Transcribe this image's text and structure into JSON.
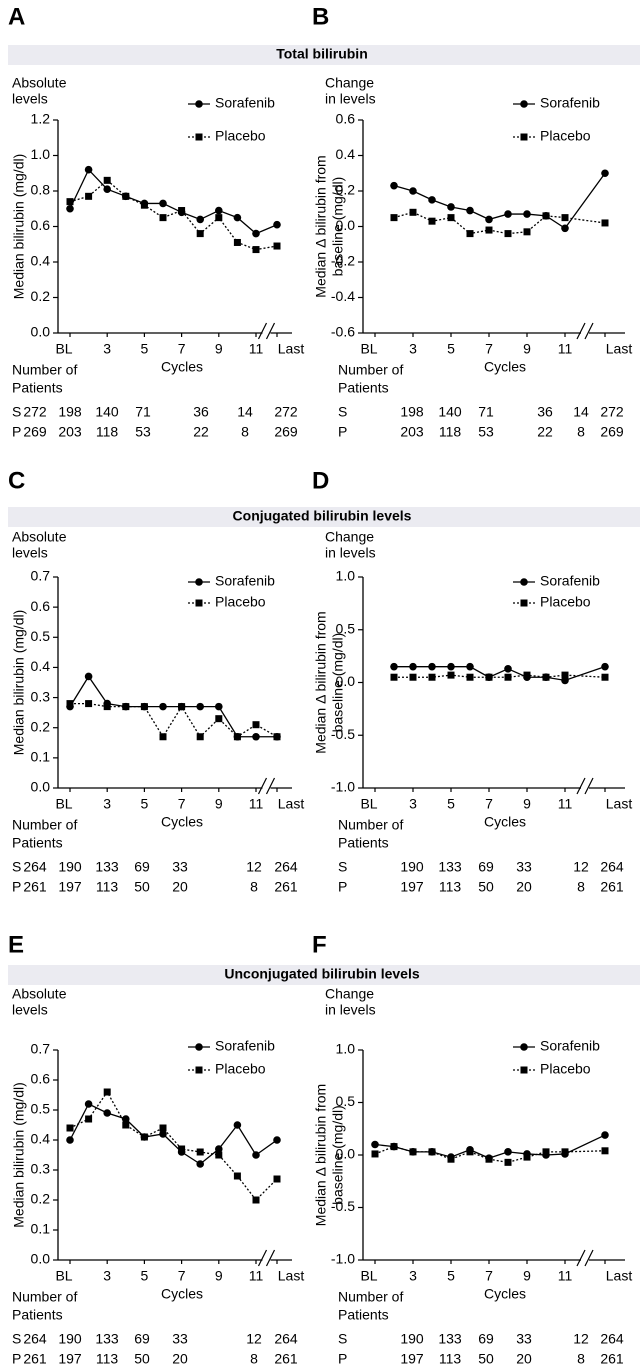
{
  "section_titles": [
    "Total bilirubin",
    "Conjugated bilirubin levels",
    "Unconjugated bilirubin levels"
  ],
  "chart_data": [
    {
      "type": "line",
      "panel": "A",
      "corner_label": [
        "Absolute",
        "levels"
      ],
      "y_label": [
        "Median bilirubin (mg/dl)"
      ],
      "x_label": "Cycles",
      "categories": [
        "BL",
        null,
        "3",
        null,
        "5",
        null,
        "7",
        null,
        "9",
        null,
        "11",
        "Last"
      ],
      "series": [
        {
          "name": "Sorafenib",
          "color": "#000000",
          "marker": "circle",
          "line_style": "solid",
          "values": [
            0.7,
            0.92,
            0.81,
            0.77,
            0.73,
            0.73,
            0.68,
            0.64,
            0.69,
            0.65,
            0.56,
            0.61
          ]
        },
        {
          "name": "Placebo",
          "color": "#000000",
          "marker": "square",
          "line_style": "dotted",
          "values": [
            0.74,
            0.77,
            0.86,
            0.77,
            0.72,
            0.65,
            0.69,
            0.56,
            0.65,
            0.51,
            0.47,
            0.49
          ]
        }
      ],
      "ylim": [
        0,
        1.2
      ],
      "yticks": [
        {
          "value": 0,
          "label": "0.0"
        },
        0.2,
        0.4,
        0.6,
        0.8,
        {
          "value": 1,
          "label": "1.0"
        },
        1.2
      ],
      "legend": "upper right",
      "patients": {
        "title": [
          "Number of",
          "Patients"
        ],
        "rows": [
          {
            "label": "S",
            "values": [
              272,
              198,
              140,
              71,
              36,
              14,
              272
            ]
          },
          {
            "label": "P",
            "values": [
              269,
              203,
              118,
              53,
              22,
              8,
              269
            ]
          }
        ]
      }
    },
    {
      "type": "line",
      "panel": "B",
      "corner_label": [
        "Change",
        "in levels"
      ],
      "y_label": [
        "Median Δ bilirubin from",
        "baseline (mg/dl)"
      ],
      "x_label": "Cycles",
      "categories": [
        "BL",
        null,
        "3",
        null,
        "5",
        null,
        "7",
        null,
        "9",
        null,
        "11",
        "Last"
      ],
      "series": [
        {
          "name": "Sorafenib",
          "color": "#000000",
          "marker": "circle",
          "line_style": "solid",
          "values": [
            null,
            0.23,
            0.2,
            0.15,
            0.11,
            0.09,
            0.04,
            0.07,
            0.07,
            0.06,
            -0.01,
            0.3
          ]
        },
        {
          "name": "Placebo",
          "color": "#000000",
          "marker": "square",
          "line_style": "dotted",
          "values": [
            null,
            0.05,
            0.08,
            0.03,
            0.05,
            -0.04,
            -0.02,
            -0.04,
            -0.03,
            0.06,
            0.05,
            0.02
          ]
        }
      ],
      "ylim": [
        -0.6,
        0.6
      ],
      "yticks": [
        -0.6,
        -0.4,
        -0.2,
        {
          "value": 0,
          "label": "0.0"
        },
        0.2,
        0.4,
        0.6
      ],
      "legend": "upper right",
      "patients": {
        "title": [
          "Number of",
          "Patients"
        ],
        "rows": [
          {
            "label": "S",
            "values": [
              198,
              140,
              71,
              36,
              14,
              272
            ]
          },
          {
            "label": "P",
            "values": [
              203,
              118,
              53,
              22,
              8,
              269
            ]
          }
        ]
      }
    },
    {
      "type": "line",
      "panel": "C",
      "corner_label": [
        "Absolute",
        "levels"
      ],
      "y_label": [
        "Median bilirubin (mg/dl)"
      ],
      "x_label": "Cycles",
      "categories": [
        "BL",
        null,
        "3",
        null,
        "5",
        null,
        "7",
        null,
        "9",
        null,
        "11",
        "Last"
      ],
      "series": [
        {
          "name": "Sorafenib",
          "color": "#000000",
          "marker": "circle",
          "line_style": "solid",
          "values": [
            0.27,
            0.37,
            0.28,
            0.27,
            0.27,
            0.27,
            0.27,
            0.27,
            0.27,
            0.17,
            0.17,
            0.17
          ]
        },
        {
          "name": "Placebo",
          "color": "#000000",
          "marker": "square",
          "line_style": "dotted",
          "values": [
            0.28,
            0.28,
            0.27,
            0.27,
            0.27,
            0.17,
            0.27,
            0.17,
            0.23,
            0.17,
            0.21,
            0.17
          ]
        }
      ],
      "ylim": [
        0,
        0.7
      ],
      "yticks": [
        {
          "value": 0,
          "label": "0.0"
        },
        0.1,
        0.2,
        0.3,
        0.4,
        0.5,
        0.6,
        0.7
      ],
      "legend": "upper right",
      "patients": {
        "title": [
          "Number of",
          "Patients"
        ],
        "rows": [
          {
            "label": "S",
            "values": [
              264,
              190,
              133,
              69,
              33,
              12,
              264
            ]
          },
          {
            "label": "P",
            "values": [
              261,
              197,
              113,
              50,
              20,
              8,
              261
            ]
          }
        ]
      }
    },
    {
      "type": "line",
      "panel": "D",
      "corner_label": [
        "Change",
        "in levels"
      ],
      "y_label": [
        "Median Δ bilirubin from",
        "baseline (mg/dl)"
      ],
      "x_label": "Cycles",
      "categories": [
        "BL",
        null,
        "3",
        null,
        "5",
        null,
        "7",
        null,
        "9",
        null,
        "11",
        "Last"
      ],
      "series": [
        {
          "name": "Sorafenib",
          "color": "#000000",
          "marker": "circle",
          "line_style": "solid",
          "values": [
            null,
            0.15,
            0.15,
            0.15,
            0.15,
            0.15,
            0.05,
            0.13,
            0.05,
            0.05,
            0.02,
            0.15
          ]
        },
        {
          "name": "Placebo",
          "color": "#000000",
          "marker": "square",
          "line_style": "dotted",
          "values": [
            null,
            0.05,
            0.05,
            0.05,
            0.07,
            0.05,
            0.05,
            0.05,
            0.07,
            0.05,
            0.07,
            0.05
          ]
        }
      ],
      "ylim": [
        -1,
        1
      ],
      "yticks": [
        {
          "value": -1,
          "label": "-1.0"
        },
        -0.5,
        {
          "value": 0,
          "label": "0.0"
        },
        0.5,
        {
          "value": 1,
          "label": "1.0"
        }
      ],
      "legend": "upper right",
      "patients": {
        "title": [
          "Number of",
          "Patients"
        ],
        "rows": [
          {
            "label": "S",
            "values": [
              190,
              133,
              69,
              33,
              12,
              264
            ]
          },
          {
            "label": "P",
            "values": [
              197,
              113,
              50,
              20,
              8,
              261
            ]
          }
        ]
      }
    },
    {
      "type": "line",
      "panel": "E",
      "corner_label": [
        "Absolute",
        "levels"
      ],
      "y_label": [
        "Median bilirubin (mg/dl)"
      ],
      "x_label": "Cycles",
      "categories": [
        "BL",
        null,
        "3",
        null,
        "5",
        null,
        "7",
        null,
        "9",
        null,
        "11",
        "Last"
      ],
      "series": [
        {
          "name": "Sorafenib",
          "color": "#000000",
          "marker": "circle",
          "line_style": "solid",
          "values": [
            0.4,
            0.52,
            0.49,
            0.47,
            0.41,
            0.42,
            0.36,
            0.32,
            0.37,
            0.45,
            0.35,
            0.4
          ]
        },
        {
          "name": "Placebo",
          "color": "#000000",
          "marker": "square",
          "line_style": "dotted",
          "values": [
            0.44,
            0.47,
            0.56,
            0.45,
            0.41,
            0.44,
            0.37,
            0.36,
            0.35,
            0.28,
            0.2,
            0.27
          ]
        }
      ],
      "ylim": [
        0,
        0.7
      ],
      "yticks": [
        {
          "value": 0,
          "label": "0.0"
        },
        0.1,
        0.2,
        0.3,
        0.4,
        0.5,
        0.6,
        0.7
      ],
      "legend": "upper right",
      "patients": {
        "title": [
          "Number of",
          "Patients"
        ],
        "rows": [
          {
            "label": "S",
            "values": [
              264,
              190,
              133,
              69,
              33,
              12,
              264
            ]
          },
          {
            "label": "P",
            "values": [
              261,
              197,
              113,
              50,
              20,
              8,
              261
            ]
          }
        ]
      }
    },
    {
      "type": "line",
      "panel": "F",
      "corner_label": [
        "Change",
        "in levels"
      ],
      "y_label": [
        "Median Δ bilirubin from",
        "baseline (mg/dl)"
      ],
      "x_label": "Cycles",
      "categories": [
        "BL",
        null,
        "3",
        null,
        "5",
        null,
        "7",
        null,
        "9",
        null,
        "11",
        "Last"
      ],
      "series": [
        {
          "name": "Sorafenib",
          "color": "#000000",
          "marker": "circle",
          "line_style": "solid",
          "values": [
            0.1,
            0.08,
            0.03,
            0.03,
            -0.02,
            0.05,
            -0.03,
            0.03,
            0.01,
            0.0,
            0.01,
            0.19
          ]
        },
        {
          "name": "Placebo",
          "color": "#000000",
          "marker": "square",
          "line_style": "dotted",
          "values": [
            0.01,
            0.08,
            0.03,
            0.03,
            -0.04,
            0.03,
            -0.04,
            -0.07,
            -0.02,
            0.03,
            0.03,
            0.04
          ]
        }
      ],
      "ylim": [
        -1,
        1
      ],
      "yticks": [
        {
          "value": -1,
          "label": "-1.0"
        },
        -0.5,
        {
          "value": 0,
          "label": "0.0"
        },
        0.5,
        {
          "value": 1,
          "label": "1.0"
        }
      ],
      "legend": "upper right",
      "patients": {
        "title": [
          "Number of",
          "Patients"
        ],
        "rows": [
          {
            "label": "S",
            "values": [
              190,
              133,
              69,
              33,
              12,
              264
            ]
          },
          {
            "label": "P",
            "values": [
              197,
              113,
              50,
              20,
              8,
              261
            ]
          }
        ]
      }
    }
  ]
}
